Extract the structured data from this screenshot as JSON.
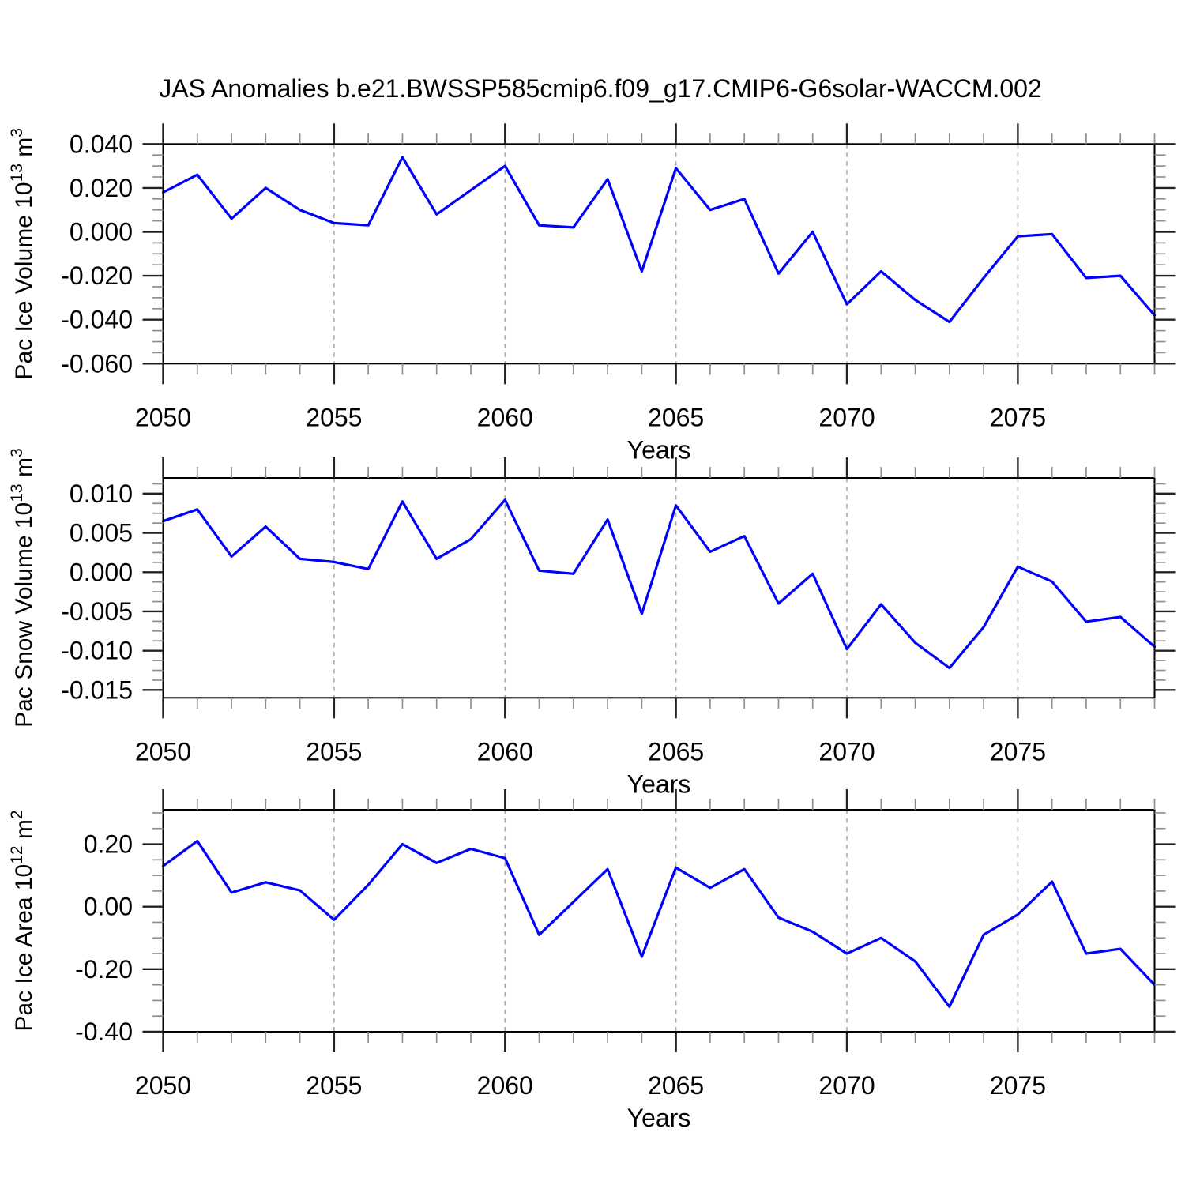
{
  "figure": {
    "title": "JAS Anomalies b.e21.BWSSP585cmip6.f09_g17.CMIP6-G6solar-WACCM.002",
    "background": "#FFFFFF",
    "line_color": "#0000FF",
    "axis_color": "#000000",
    "major_tick_color": "#222222",
    "minor_tick_color": "#909090",
    "grid_color": "#ABABAB",
    "text_color": "#000000"
  },
  "years": [
    2050,
    2051,
    2052,
    2053,
    2054,
    2055,
    2056,
    2057,
    2058,
    2059,
    2060,
    2061,
    2062,
    2063,
    2064,
    2065,
    2066,
    2067,
    2068,
    2069,
    2070,
    2071,
    2072,
    2073,
    2074,
    2075,
    2076,
    2077,
    2078,
    2079
  ],
  "chart_data": [
    {
      "type": "line",
      "title": "",
      "series_name": "Pac Ice Volume anomaly",
      "xlabel": "Years",
      "ylabel": "Pac Ice Volume 10^13 m^3",
      "ylabel_parts": [
        {
          "text": "Pac Ice Volume 10"
        },
        {
          "sup": "13"
        },
        {
          "text": " m"
        },
        {
          "sup": "3"
        }
      ],
      "x_start": 2050,
      "x_end": 2079,
      "values": [
        0.018,
        0.026,
        0.006,
        0.02,
        0.01,
        0.004,
        0.003,
        0.034,
        0.008,
        0.019,
        0.03,
        0.003,
        0.002,
        0.024,
        -0.018,
        0.029,
        0.01,
        0.015,
        -0.019,
        0.0,
        -0.033,
        -0.018,
        -0.031,
        -0.041,
        -0.021,
        -0.002,
        -0.001,
        -0.021,
        -0.02,
        -0.038
      ],
      "ylim": [
        -0.06,
        0.04
      ],
      "yticks": [
        {
          "v": 0.04,
          "label": "0.040"
        },
        {
          "v": 0.02,
          "label": "0.020"
        },
        {
          "v": 0.0,
          "label": "0.000"
        },
        {
          "v": -0.02,
          "label": "-0.020"
        },
        {
          "v": -0.04,
          "label": "-0.040"
        },
        {
          "v": -0.06,
          "label": "-0.060"
        }
      ],
      "y_minor_step": 0.005,
      "xticks": [
        {
          "v": 2050,
          "label": "2050"
        },
        {
          "v": 2055,
          "label": "2055"
        },
        {
          "v": 2060,
          "label": "2060"
        },
        {
          "v": 2065,
          "label": "2065"
        },
        {
          "v": 2070,
          "label": "2070"
        },
        {
          "v": 2075,
          "label": "2075"
        }
      ],
      "x_minor_step": 1,
      "grid_x_dashed": [
        2055,
        2060,
        2065,
        2070,
        2075
      ],
      "grid": "vertical-dashed-only",
      "legend": "none"
    },
    {
      "type": "line",
      "title": "",
      "series_name": "Pac Snow Volume anomaly",
      "xlabel": "Years",
      "ylabel": "Pac Snow Volume 10^13 m^3",
      "ylabel_parts": [
        {
          "text": "Pac Snow Volume 10"
        },
        {
          "sup": "13"
        },
        {
          "text": " m"
        },
        {
          "sup": "3"
        }
      ],
      "x_start": 2050,
      "x_end": 2079,
      "values": [
        0.0065,
        0.008,
        0.002,
        0.0058,
        0.0017,
        0.0013,
        0.0004,
        0.009,
        0.0017,
        0.0042,
        0.0092,
        0.0002,
        -0.0002,
        0.0067,
        -0.0053,
        0.0085,
        0.0026,
        0.0046,
        -0.004,
        -0.0002,
        -0.0098,
        -0.0041,
        -0.009,
        -0.0122,
        -0.007,
        0.0007,
        -0.0012,
        -0.0063,
        -0.0057,
        -0.0095
      ],
      "ylim": [
        -0.016,
        0.012
      ],
      "yticks": [
        {
          "v": 0.01,
          "label": "0.010"
        },
        {
          "v": 0.005,
          "label": "0.005"
        },
        {
          "v": 0.0,
          "label": "0.000"
        },
        {
          "v": -0.005,
          "label": "-0.005"
        },
        {
          "v": -0.01,
          "label": "-0.010"
        },
        {
          "v": -0.015,
          "label": "-0.015"
        }
      ],
      "y_minor_step": 0.00125,
      "xticks": [
        {
          "v": 2050,
          "label": "2050"
        },
        {
          "v": 2055,
          "label": "2055"
        },
        {
          "v": 2060,
          "label": "2060"
        },
        {
          "v": 2065,
          "label": "2065"
        },
        {
          "v": 2070,
          "label": "2070"
        },
        {
          "v": 2075,
          "label": "2075"
        }
      ],
      "x_minor_step": 1,
      "grid_x_dashed": [
        2055,
        2060,
        2065,
        2070,
        2075
      ],
      "grid": "vertical-dashed-only",
      "legend": "none"
    },
    {
      "type": "line",
      "title": "",
      "series_name": "Pac Ice Area anomaly",
      "xlabel": "Years",
      "ylabel": "Pac Ice Area 10^12 m^2",
      "ylabel_parts": [
        {
          "text": "Pac Ice Area 10"
        },
        {
          "sup": "12"
        },
        {
          "text": " m"
        },
        {
          "sup": "2"
        }
      ],
      "x_start": 2050,
      "x_end": 2079,
      "values": [
        0.13,
        0.21,
        0.045,
        0.078,
        0.052,
        -0.042,
        0.07,
        0.2,
        0.14,
        0.185,
        0.155,
        -0.09,
        0.015,
        0.12,
        -0.16,
        0.125,
        0.06,
        0.12,
        -0.035,
        -0.08,
        -0.15,
        -0.1,
        -0.175,
        -0.32,
        -0.09,
        -0.025,
        0.08,
        -0.15,
        -0.135,
        -0.25
      ],
      "ylim": [
        -0.4,
        0.31
      ],
      "yticks": [
        {
          "v": 0.2,
          "label": "0.20"
        },
        {
          "v": 0.0,
          "label": "0.00"
        },
        {
          "v": -0.2,
          "label": "-0.20"
        },
        {
          "v": -0.4,
          "label": "-0.40"
        }
      ],
      "y_minor_step": 0.05,
      "xticks": [
        {
          "v": 2050,
          "label": "2050"
        },
        {
          "v": 2055,
          "label": "2055"
        },
        {
          "v": 2060,
          "label": "2060"
        },
        {
          "v": 2065,
          "label": "2065"
        },
        {
          "v": 2070,
          "label": "2070"
        },
        {
          "v": 2075,
          "label": "2075"
        }
      ],
      "x_minor_step": 1,
      "grid_x_dashed": [
        2055,
        2060,
        2065,
        2070,
        2075
      ],
      "grid": "vertical-dashed-only",
      "legend": "none"
    }
  ]
}
